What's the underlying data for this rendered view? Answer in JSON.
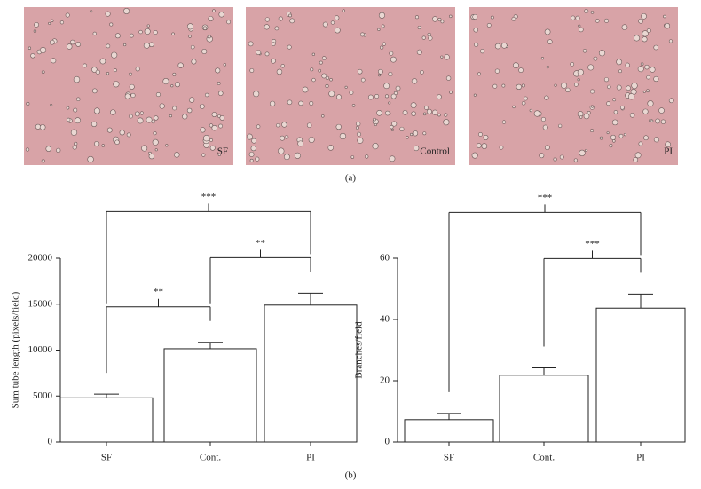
{
  "panels": {
    "a": {
      "label": "(a)",
      "images": [
        {
          "label": "SF"
        },
        {
          "label": "Control"
        },
        {
          "label": "PI"
        }
      ]
    },
    "b": {
      "label": "(b)"
    }
  },
  "chart_data": [
    {
      "type": "bar",
      "ylabel": "Sum tube length (pixels/field)",
      "categories": [
        "SF",
        "Cont.",
        "PI"
      ],
      "values": [
        4800,
        10150,
        14900
      ],
      "errors": [
        400,
        700,
        1300
      ],
      "color": "#ffffff",
      "ylim": [
        0,
        20000
      ],
      "yticks": [
        0,
        5000,
        10000,
        15000,
        20000
      ],
      "significance": [
        {
          "from": 0,
          "to": 1,
          "label": "**"
        },
        {
          "from": 1,
          "to": 2,
          "label": "**"
        },
        {
          "from": 0,
          "to": 2,
          "label": "***"
        }
      ]
    },
    {
      "type": "bar",
      "ylabel": "Branches/field",
      "categories": [
        "SF",
        "Cont.",
        "PI"
      ],
      "values": [
        7.3,
        21.8,
        43.7
      ],
      "errors": [
        2,
        2.4,
        4.6
      ],
      "color": "#ffffff",
      "ylim": [
        0,
        60
      ],
      "yticks": [
        0,
        20,
        40,
        60
      ],
      "significance": [
        {
          "from": 1,
          "to": 2,
          "label": "***"
        },
        {
          "from": 0,
          "to": 2,
          "label": "***"
        }
      ]
    }
  ]
}
